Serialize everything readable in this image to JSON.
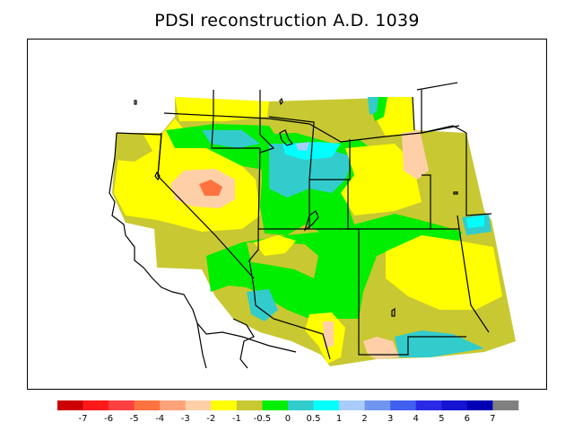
{
  "title": "PDSI reconstruction A.D. 1039",
  "legend": {
    "colors": [
      "#cc0000",
      "#ff1a1a",
      "#ff4040",
      "#ff7340",
      "#ffa27a",
      "#ffd0a8",
      "#ffff00",
      "#c8c832",
      "#00ee00",
      "#33cccc",
      "#00ffff",
      "#a8cdfb",
      "#7096f0",
      "#4060f0",
      "#2a2ae6",
      "#1414d2",
      "#0000b4",
      "#808080"
    ],
    "labels": [
      "-7",
      "-6",
      "-5",
      "-4",
      "-3",
      "-2",
      "-1",
      "-0.5",
      "0",
      "0.5",
      "1",
      "2",
      "3",
      "4",
      "5",
      "6",
      "7"
    ]
  },
  "map": {
    "palette": {
      "yellow": "#ffff00",
      "olive": "#c8c832",
      "green": "#00ee00",
      "teal": "#33cccc",
      "cyan": "#00ffff",
      "peach": "#ffd0a8",
      "salmon": "#ff7340",
      "lightblue": "#a8cdfb",
      "border": "#000000"
    }
  }
}
